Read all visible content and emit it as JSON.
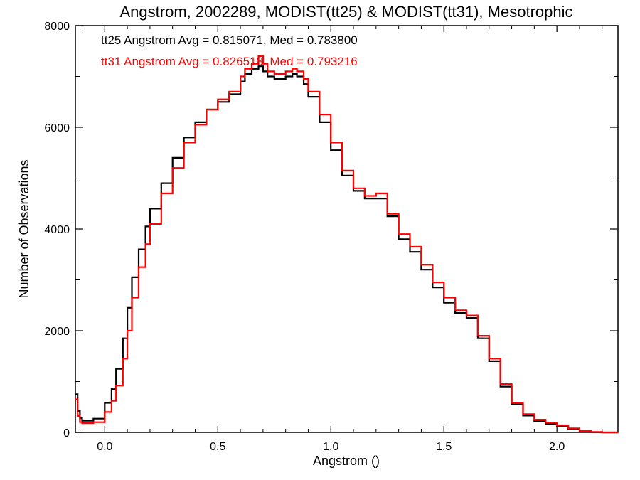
{
  "chart_data": {
    "type": "line",
    "title": "Angstrom, 2002289, MODIST(tt25) & MODIST(tt31), Mesotrophic",
    "xlabel": "Angstrom ()",
    "ylabel": "Number of Observations",
    "xlim": [
      -0.13,
      2.27
    ],
    "ylim": [
      0,
      8000
    ],
    "x_ticks": [
      {
        "value": 0.0,
        "label": "0.0"
      },
      {
        "value": 0.5,
        "label": "0.5"
      },
      {
        "value": 1.0,
        "label": "1.0"
      },
      {
        "value": 1.5,
        "label": "1.5"
      },
      {
        "value": 2.0,
        "label": "2.0"
      }
    ],
    "y_ticks": [
      {
        "value": 0,
        "label": "0"
      },
      {
        "value": 2000,
        "label": "2000"
      },
      {
        "value": 4000,
        "label": "4000"
      },
      {
        "value": 6000,
        "label": "6000"
      },
      {
        "value": 8000,
        "label": "8000"
      }
    ],
    "grid": false,
    "legend": "top-left",
    "annotations": [
      {
        "text": "tt25 Angstrom Avg = 0.815071, Med = 0.783800",
        "color": "#000000"
      },
      {
        "text": "tt31 Angstrom Avg = 0.826518, Med = 0.793216",
        "color": "#ff0000"
      }
    ],
    "series": [
      {
        "color": "#000000",
        "x": [
          -0.13,
          -0.12,
          -0.11,
          -0.1,
          -0.05,
          0.0,
          0.03,
          0.05,
          0.08,
          0.1,
          0.12,
          0.15,
          0.18,
          0.2,
          0.25,
          0.3,
          0.35,
          0.4,
          0.45,
          0.5,
          0.55,
          0.6,
          0.62,
          0.65,
          0.68,
          0.7,
          0.72,
          0.75,
          0.78,
          0.8,
          0.83,
          0.85,
          0.88,
          0.9,
          0.95,
          1.0,
          1.05,
          1.1,
          1.15,
          1.2,
          1.25,
          1.3,
          1.35,
          1.4,
          1.45,
          1.5,
          1.55,
          1.6,
          1.65,
          1.7,
          1.75,
          1.8,
          1.85,
          1.9,
          1.95,
          2.0,
          2.05,
          2.1,
          2.15,
          2.2,
          2.27
        ],
        "y": [
          750,
          420,
          280,
          230,
          270,
          580,
          850,
          1250,
          1850,
          2450,
          3050,
          3600,
          4050,
          4400,
          4900,
          5400,
          5800,
          6100,
          6350,
          6500,
          6650,
          6900,
          7050,
          7150,
          7200,
          7100,
          7000,
          6950,
          6950,
          7000,
          7050,
          7000,
          6850,
          6600,
          6100,
          5550,
          5050,
          4750,
          4600,
          4600,
          4250,
          3800,
          3550,
          3200,
          2850,
          2550,
          2350,
          2250,
          1850,
          1400,
          900,
          550,
          330,
          220,
          160,
          120,
          60,
          20,
          5,
          0,
          0
        ]
      },
      {
        "color": "#ff0000",
        "x": [
          -0.13,
          -0.12,
          -0.11,
          -0.1,
          -0.05,
          0.0,
          0.03,
          0.05,
          0.08,
          0.1,
          0.12,
          0.15,
          0.18,
          0.2,
          0.25,
          0.3,
          0.35,
          0.4,
          0.45,
          0.5,
          0.55,
          0.6,
          0.62,
          0.65,
          0.68,
          0.7,
          0.72,
          0.75,
          0.78,
          0.8,
          0.83,
          0.85,
          0.88,
          0.9,
          0.95,
          1.0,
          1.05,
          1.1,
          1.15,
          1.2,
          1.25,
          1.3,
          1.35,
          1.4,
          1.45,
          1.5,
          1.55,
          1.6,
          1.65,
          1.7,
          1.75,
          1.8,
          1.85,
          1.9,
          1.95,
          2.0,
          2.05,
          2.1,
          2.15,
          2.2,
          2.27
        ],
        "y": [
          650,
          320,
          200,
          180,
          200,
          400,
          620,
          920,
          1450,
          2000,
          2650,
          3250,
          3700,
          4100,
          4700,
          5200,
          5700,
          6050,
          6350,
          6550,
          6700,
          7000,
          7150,
          7250,
          7400,
          7250,
          7100,
          7050,
          7050,
          7100,
          7150,
          7100,
          6950,
          6700,
          6250,
          5700,
          5150,
          4800,
          4650,
          4700,
          4300,
          3900,
          3650,
          3300,
          2950,
          2650,
          2400,
          2300,
          1900,
          1450,
          950,
          580,
          360,
          250,
          190,
          140,
          80,
          30,
          10,
          0,
          0
        ]
      }
    ]
  }
}
